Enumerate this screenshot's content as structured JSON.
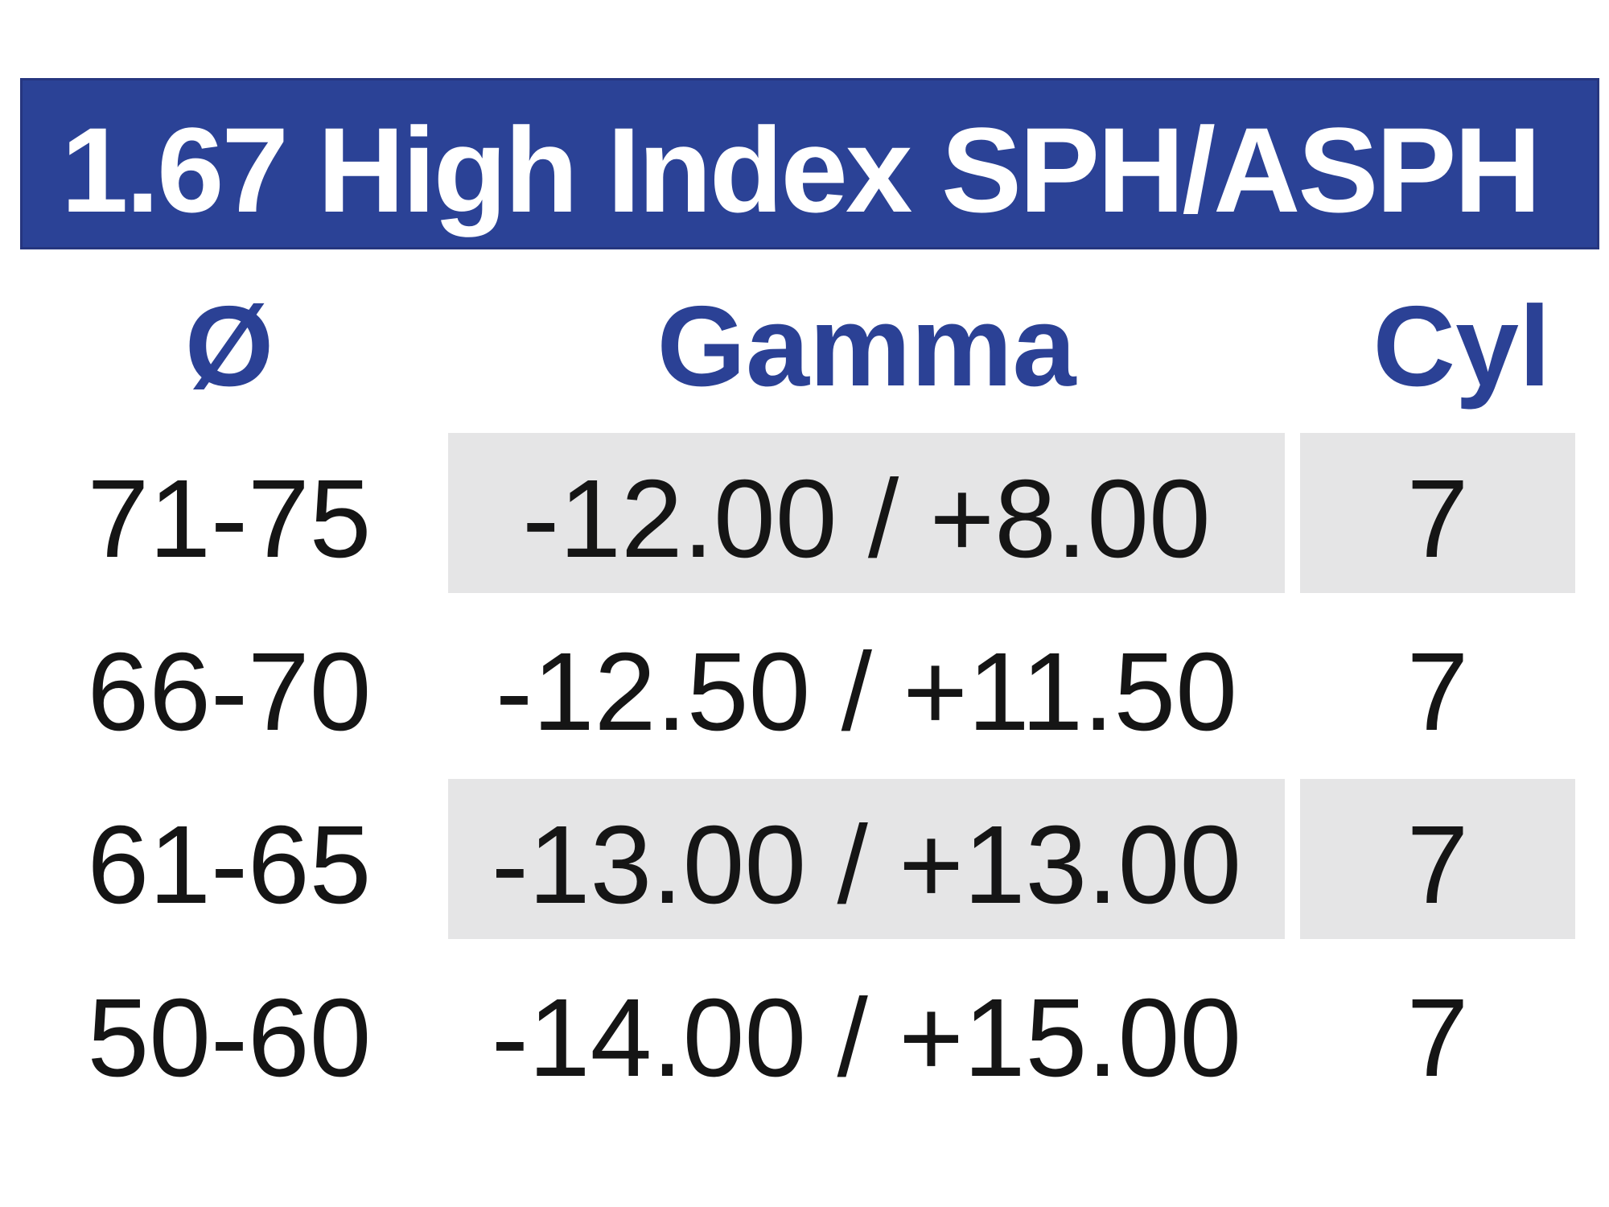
{
  "title": "1.67 High Index SPH/ASPH",
  "colors": {
    "banner_blue": "#2B4296",
    "banner_border": "#26367F",
    "header_text_blue": "#2B4195",
    "shaded_cell_gray": "#E5E5E6",
    "row_text": "#151515",
    "title_text": "#FFFFFF"
  },
  "table": {
    "columns": [
      {
        "label": "Ø"
      },
      {
        "label": "Gamma"
      },
      {
        "label": "Cyl"
      }
    ],
    "rows": [
      {
        "diameter": "71-75",
        "gamma": "-12.00 / +8.00",
        "cyl": "7",
        "shaded": true
      },
      {
        "diameter": "66-70",
        "gamma": "-12.50 / +11.50",
        "cyl": "7",
        "shaded": false
      },
      {
        "diameter": "61-65",
        "gamma": "-13.00 / +13.00",
        "cyl": "7",
        "shaded": true
      },
      {
        "diameter": "50-60",
        "gamma": "-14.00 / +15.00",
        "cyl": "7",
        "shaded": false
      }
    ]
  },
  "chart_data": {
    "type": "table",
    "title": "1.67 High Index SPH/ASPH",
    "columns": [
      "Ø",
      "Gamma",
      "Cyl"
    ],
    "rows": [
      [
        "71-75",
        "-12.00 / +8.00",
        7
      ],
      [
        "66-70",
        "-12.50 / +11.50",
        7
      ],
      [
        "61-65",
        "-13.00 / +13.00",
        7
      ],
      [
        "50-60",
        "-14.00 / +15.00",
        7
      ]
    ],
    "layout_hints": {
      "shaded_row_indices": [
        0,
        2
      ],
      "shaded_columns_only": [
        "Gamma",
        "Cyl"
      ],
      "header_style": "white bold text on blue banner",
      "grid": "off"
    }
  }
}
